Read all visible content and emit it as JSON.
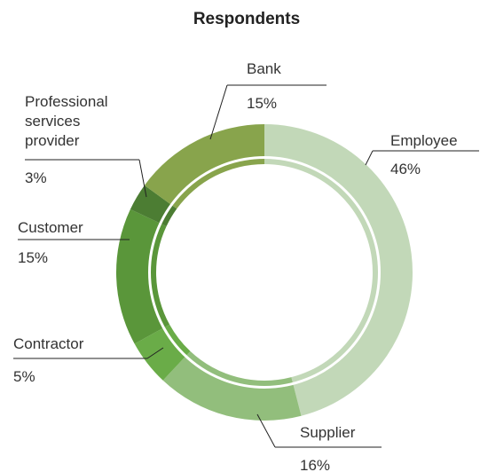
{
  "chart_data": {
    "type": "pie",
    "subtype": "donut",
    "title": "Respondents",
    "categories": [
      "Employee",
      "Supplier",
      "Contractor",
      "Customer",
      "Professional services provider",
      "Bank"
    ],
    "values": [
      46,
      16,
      5,
      15,
      3,
      15
    ],
    "value_labels": [
      "46%",
      "16%",
      "5%",
      "15%",
      "3%",
      "15%"
    ],
    "colors": [
      "#c2d8b8",
      "#92be7c",
      "#6aac48",
      "#5a963a",
      "#4c7d33",
      "#88a44c"
    ],
    "label_lines": [
      [
        "Employee"
      ],
      [
        "Supplier"
      ],
      [
        "Contractor"
      ],
      [
        "Customer"
      ],
      [
        "Professional",
        "services",
        "provider"
      ],
      [
        "Bank"
      ]
    ]
  }
}
